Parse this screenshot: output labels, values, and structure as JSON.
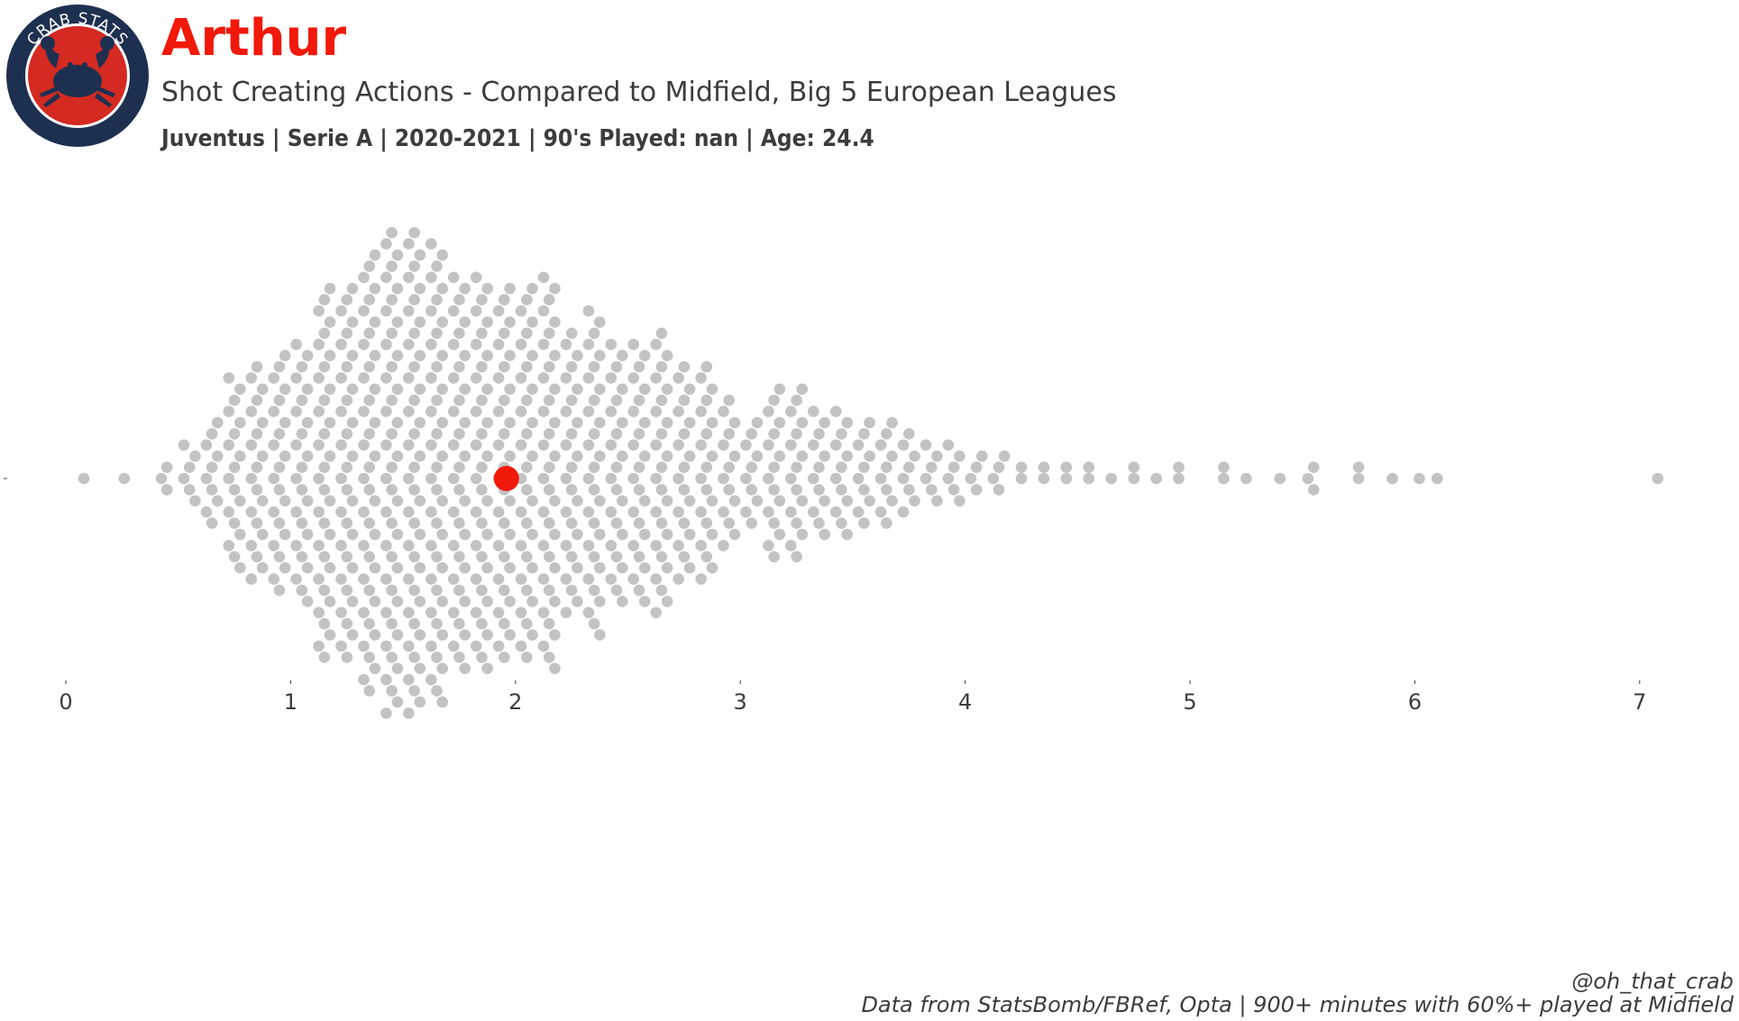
{
  "logo": {
    "text": "CRAB STATS",
    "ring_color": "#1e3050",
    "inner_color": "#d42a22",
    "crab_color": "#1e3050",
    "icon": "crab-icon"
  },
  "header": {
    "player": "Arthur",
    "subtitle": "Shot Creating Actions - Compared to Midfield, Big 5 European Leagues",
    "info": "Juventus  | Serie A | 2020-2021 | 90's Played: nan | Age: 24.4"
  },
  "footer": {
    "handle": "@oh_that_crab",
    "source": "Data from StatsBomb/FBRef, Opta | 900+ minutes with 60%+ played at Midfield"
  },
  "chart_data": {
    "type": "scatter",
    "style": "beeswarm",
    "title": "",
    "xlabel": "",
    "ylabel": "",
    "xlim": [
      0,
      7.2
    ],
    "ticks": [
      0,
      1,
      2,
      3,
      4,
      5,
      6,
      7
    ],
    "tick_labels": [
      "0",
      "1",
      "2",
      "3",
      "4",
      "5",
      "6",
      "7"
    ],
    "grid": false,
    "highlight": {
      "value": 1.96,
      "color": "#f0190a"
    },
    "point_color": "#c3c3c3",
    "distribution_bins": [
      {
        "x": 0.08,
        "count": 1
      },
      {
        "x": 0.26,
        "count": 1
      },
      {
        "x": 0.45,
        "count": 3
      },
      {
        "x": 0.55,
        "count": 6
      },
      {
        "x": 0.65,
        "count": 10
      },
      {
        "x": 0.75,
        "count": 18
      },
      {
        "x": 0.85,
        "count": 20
      },
      {
        "x": 0.95,
        "count": 22
      },
      {
        "x": 1.05,
        "count": 24
      },
      {
        "x": 1.15,
        "count": 34
      },
      {
        "x": 1.25,
        "count": 34
      },
      {
        "x": 1.35,
        "count": 40
      },
      {
        "x": 1.45,
        "count": 44
      },
      {
        "x": 1.55,
        "count": 44
      },
      {
        "x": 1.65,
        "count": 42
      },
      {
        "x": 1.75,
        "count": 36
      },
      {
        "x": 1.85,
        "count": 36
      },
      {
        "x": 1.95,
        "count": 34
      },
      {
        "x": 2.05,
        "count": 34
      },
      {
        "x": 2.15,
        "count": 36
      },
      {
        "x": 2.25,
        "count": 26
      },
      {
        "x": 2.35,
        "count": 30
      },
      {
        "x": 2.45,
        "count": 24
      },
      {
        "x": 2.55,
        "count": 24
      },
      {
        "x": 2.65,
        "count": 26
      },
      {
        "x": 2.75,
        "count": 20
      },
      {
        "x": 2.85,
        "count": 20
      },
      {
        "x": 2.95,
        "count": 14
      },
      {
        "x": 3.05,
        "count": 10
      },
      {
        "x": 3.15,
        "count": 16
      },
      {
        "x": 3.25,
        "count": 16
      },
      {
        "x": 3.35,
        "count": 12
      },
      {
        "x": 3.45,
        "count": 12
      },
      {
        "x": 3.55,
        "count": 10
      },
      {
        "x": 3.65,
        "count": 10
      },
      {
        "x": 3.75,
        "count": 8
      },
      {
        "x": 3.85,
        "count": 6
      },
      {
        "x": 3.95,
        "count": 6
      },
      {
        "x": 4.05,
        "count": 4
      },
      {
        "x": 4.15,
        "count": 4
      },
      {
        "x": 4.25,
        "count": 2
      },
      {
        "x": 4.35,
        "count": 2
      },
      {
        "x": 4.45,
        "count": 2
      },
      {
        "x": 4.55,
        "count": 2
      },
      {
        "x": 4.65,
        "count": 1
      },
      {
        "x": 4.75,
        "count": 2
      },
      {
        "x": 4.85,
        "count": 1
      },
      {
        "x": 4.95,
        "count": 2
      },
      {
        "x": 5.15,
        "count": 2
      },
      {
        "x": 5.25,
        "count": 1
      },
      {
        "x": 5.4,
        "count": 1
      },
      {
        "x": 5.55,
        "count": 3
      },
      {
        "x": 5.75,
        "count": 2
      },
      {
        "x": 5.9,
        "count": 1
      },
      {
        "x": 6.02,
        "count": 1
      },
      {
        "x": 6.1,
        "count": 1
      },
      {
        "x": 7.08,
        "count": 1
      }
    ]
  }
}
